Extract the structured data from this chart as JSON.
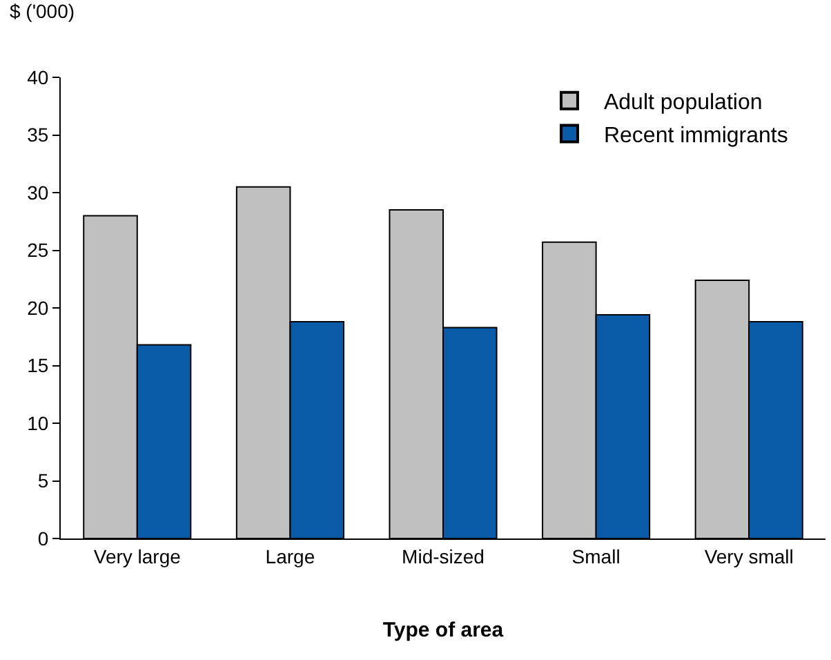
{
  "chart_data": {
    "type": "bar",
    "ylabel": "$ ('000)",
    "xlabel": "Type of area",
    "categories": [
      "Very large",
      "Large",
      "Mid-sized",
      "Small",
      "Very small"
    ],
    "series": [
      {
        "name": "Adult population",
        "color": "#c0c0c0",
        "values": [
          28.0,
          30.5,
          28.5,
          25.7,
          22.4
        ]
      },
      {
        "name": "Recent immigrants",
        "color": "#0a5ca8",
        "values": [
          16.8,
          18.8,
          18.3,
          19.4,
          18.8
        ]
      }
    ],
    "ylim": [
      0,
      40
    ],
    "yticks": [
      0,
      5,
      10,
      15,
      20,
      25,
      30,
      35,
      40
    ],
    "grid": false,
    "legend": "top right"
  }
}
